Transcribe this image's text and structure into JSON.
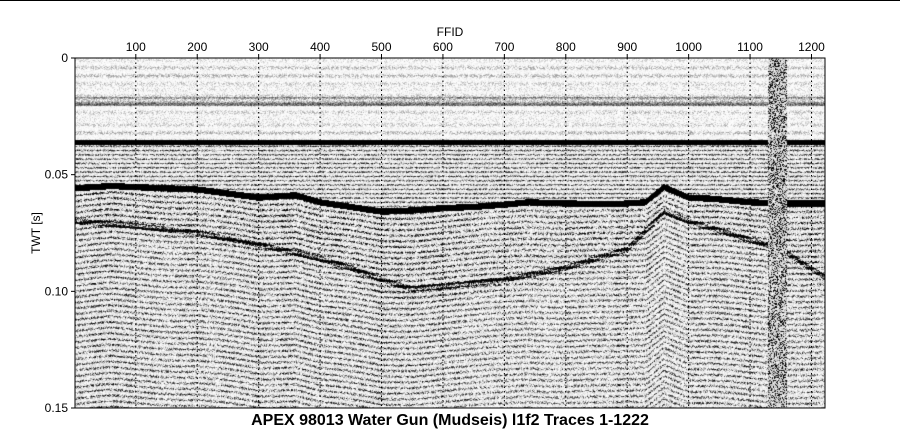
{
  "caption": "APEX 98013 Water Gun (Mudseis) l1f2 Traces 1-1222",
  "chart_data": {
    "type": "heatmap",
    "description_kind": "seismic-section",
    "xlabel": "FFID",
    "ylabel": "TWT [s]",
    "xlim": [
      1,
      1222
    ],
    "ylim": [
      0,
      0.15
    ],
    "y_inverted": true,
    "x_ticks": [
      100,
      200,
      300,
      400,
      500,
      600,
      700,
      800,
      900,
      1000,
      1100,
      1200
    ],
    "y_ticks": [
      0,
      0.05,
      0.1,
      0.15
    ],
    "y_tick_labels": [
      "0",
      "0.05",
      "0.10",
      "0.15"
    ],
    "grid": "vertical-dotted",
    "colormap": [
      "#000000",
      "#ffffff"
    ],
    "horizons": [
      {
        "x": [
          1,
          1222
        ],
        "y": [
          0.0355,
          0.0355
        ]
      },
      {
        "x": [
          1,
          60,
          100,
          200,
          300,
          360,
          400,
          450,
          500,
          550,
          600,
          650,
          700,
          740,
          800,
          880,
          930,
          960,
          1000,
          1040,
          1100,
          1150,
          1222
        ],
        "y": [
          0.056,
          0.055,
          0.0555,
          0.0565,
          0.06,
          0.059,
          0.062,
          0.064,
          0.066,
          0.0655,
          0.0645,
          0.064,
          0.063,
          0.062,
          0.0625,
          0.0628,
          0.062,
          0.0555,
          0.06,
          0.0605,
          0.062,
          0.0625,
          0.0625
        ]
      },
      {
        "x": [
          1,
          100,
          200,
          300,
          400,
          450,
          500,
          550,
          600,
          700,
          800,
          900,
          960,
          1000,
          1050,
          1100,
          1150,
          1222
        ],
        "y": [
          0.07,
          0.072,
          0.075,
          0.08,
          0.086,
          0.09,
          0.095,
          0.099,
          0.098,
          0.095,
          0.09,
          0.082,
          0.066,
          0.07,
          0.074,
          0.078,
          0.082,
          0.094
        ]
      }
    ],
    "noisy_trace_ranges": [
      [
        1130,
        1160
      ]
    ]
  }
}
